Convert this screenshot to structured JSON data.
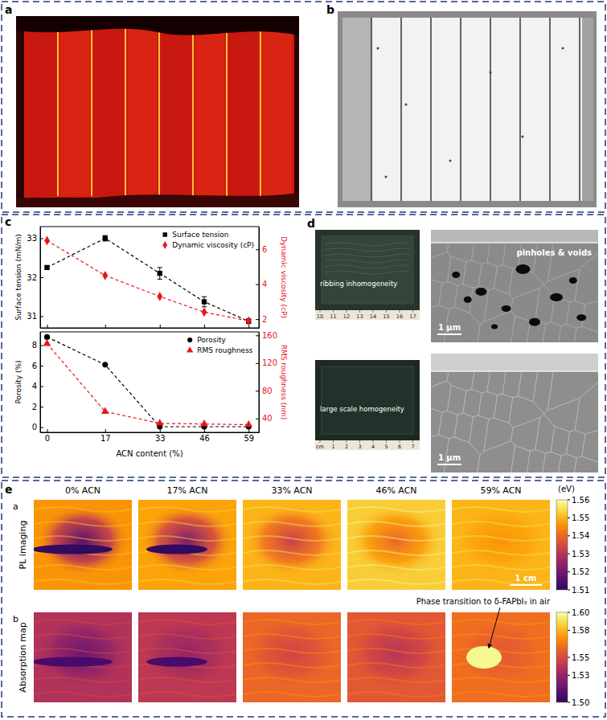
{
  "panel_labels": [
    "a",
    "b",
    "c",
    "d",
    "e"
  ],
  "chart_data": [
    {
      "type": "line",
      "x": [
        0,
        17,
        33,
        46,
        59
      ],
      "xlim": [
        -2,
        62
      ],
      "xticks": [
        0,
        17,
        33,
        46,
        59
      ],
      "ylim": [
        30.7,
        33.3
      ],
      "yticks": [
        31,
        32,
        33
      ],
      "y2lim": [
        1.5,
        7.3
      ],
      "y2ticks": [
        2,
        4,
        6
      ],
      "ylabel": "Surface tension (mN/m)",
      "y2label": "Dynamic viscosity (cP)",
      "tick_labels": "y",
      "legend": "upper right",
      "series": [
        {
          "name": "Surface tension",
          "color": "#000000",
          "marker": "square",
          "line_style": "dashed",
          "values": [
            32.25,
            33.0,
            32.1,
            31.37,
            30.87
          ],
          "errors": [
            0.04,
            0.07,
            0.15,
            0.13,
            0.06
          ]
        },
        {
          "name": "Dynamic viscosity (cP)",
          "color": "#e8161c",
          "marker": "diamond",
          "line_style": "dashed",
          "axis": "y2",
          "values": [
            6.5,
            4.5,
            3.3,
            2.4,
            1.9
          ]
        }
      ]
    },
    {
      "type": "line",
      "x": [
        0,
        17,
        33,
        46,
        59
      ],
      "xlim": [
        -2,
        62
      ],
      "xticks": [
        0,
        17,
        33,
        46,
        59
      ],
      "ylim": [
        -0.5,
        9.3
      ],
      "yticks": [
        0,
        2,
        4,
        6,
        8
      ],
      "y2lim": [
        20,
        165
      ],
      "y2ticks": [
        40,
        80,
        120,
        160
      ],
      "ylabel": "Porosity (%)",
      "y2label": "RMS roughness (nm)",
      "xlabel": "ACN content (%)",
      "legend": "upper right",
      "series": [
        {
          "name": "Porosity",
          "color": "#000000",
          "marker": "circle",
          "line_style": "dashed",
          "values": [
            8.8,
            6.1,
            0.05,
            0.05,
            0.05
          ]
        },
        {
          "name": "RMS roughness",
          "color": "#e8161c",
          "marker": "triangle",
          "line_style": "dashed",
          "axis": "y2",
          "values": [
            148,
            50,
            33,
            32,
            31
          ]
        }
      ]
    }
  ],
  "panel_d": {
    "photos": [
      {
        "annotation": "ribbing inhomogeneity",
        "ruler": [
          "10",
          "11",
          "12",
          "13",
          "14",
          "15",
          "16",
          "17"
        ]
      },
      {
        "annotation": "large scale homogeneity",
        "ruler": [
          "cm",
          "1",
          "2",
          "3",
          "4",
          "5",
          "6",
          "7"
        ]
      }
    ],
    "sem": [
      {
        "annotation": "pinholes & voids",
        "scale_bar": "1 μm"
      },
      {
        "scale_bar": "1 μm"
      }
    ]
  },
  "panel_e": {
    "columns": [
      "0% ACN",
      "17% ACN",
      "33% ACN",
      "46% ACN",
      "59% ACN"
    ],
    "rows": [
      {
        "label": "a",
        "title": "PL imaging",
        "colorbar": {
          "unit": "(eV)",
          "range": [
            1.51,
            1.56
          ],
          "ticks": [
            1.51,
            1.52,
            1.53,
            1.54,
            1.55,
            1.56
          ]
        }
      },
      {
        "label": "b",
        "title": "Absorption map",
        "colorbar": {
          "range": [
            1.5,
            1.6
          ],
          "ticks": [
            {
              "value": 1.5,
              "label": "1.50"
            },
            1.53,
            1.55,
            1.58,
            {
              "value": 1.6,
              "label": "1.60"
            }
          ]
        }
      }
    ],
    "scale_bar": "1 cm",
    "annotation": "Phase transition to δ-FAPbI₃ in air"
  }
}
